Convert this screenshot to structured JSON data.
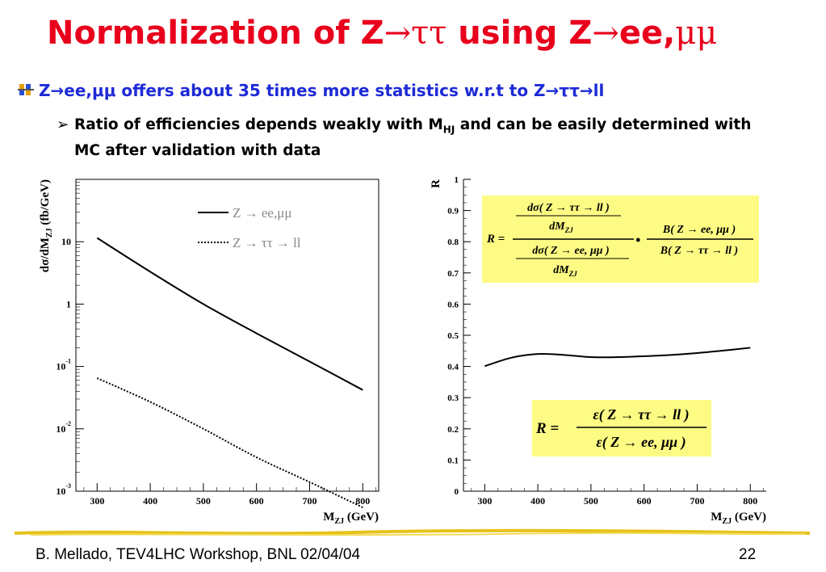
{
  "slide": {
    "title_a": "Normalization of Z",
    "title_sym1": "→ττ",
    "title_b": " using Z",
    "title_sym2": "→",
    "title_c": "ee,",
    "title_sym3": "μμ",
    "bullet1_a": "Z",
    "bullet1_sym1": "→",
    "bullet1_b": "ee,",
    "bullet1_sym2": "μμ",
    "bullet1_c": " offers about 35 times more statistics w.r.t to Z",
    "bullet1_sym3": "→ττ→",
    "bullet1_d": "ll",
    "bullet2_a": "Ratio of efficiencies depends weakly with M",
    "bullet2_sub": "HJ",
    "bullet2_b": " and can be easily determined with MC after validation with data",
    "footer_left": "B. Mellado, TEV4LHC Workshop, BNL 02/04/04",
    "page_number": "22"
  },
  "colors": {
    "title": "#e8001c",
    "bullet": "#1e2bd6",
    "formula_bg": "#fdfb84"
  },
  "formula_top": {
    "lhs": "R =",
    "num_num": "dσ( Z → ττ → ll )",
    "num_den": "dM",
    "num_den_sub": "ZJ",
    "den_num": "dσ( Z → ee, μμ )",
    "den_den": "dM",
    "den_den_sub": "ZJ",
    "dot": "•",
    "b_num": "B( Z → ee, μμ )",
    "b_den": "B( Z → ττ → ll )"
  },
  "formula_bottom": {
    "lhs": "R =",
    "num": "ε( Z → ττ → ll )",
    "den": "ε( Z → ee, μμ )"
  },
  "chart_data": [
    {
      "type": "line",
      "title": "",
      "xlabel": "M",
      "xlabel_sub": "ZJ",
      "xlabel_unit": " (GeV)",
      "ylabel": "dσ/dM",
      "ylabel_sub": "ZJ",
      "ylabel_unit": " (fb/GeV)",
      "x_ticks": [
        "300",
        "400",
        "500",
        "600",
        "700",
        "800"
      ],
      "y_scale": "log",
      "y_ticks": [
        {
          "value": 0.001,
          "base": "10",
          "exp": "-3"
        },
        {
          "value": 0.01,
          "base": "10",
          "exp": "-2"
        },
        {
          "value": 0.1,
          "base": "10",
          "exp": "-1"
        },
        {
          "value": 1,
          "base": "1",
          "exp": ""
        },
        {
          "value": 10,
          "base": "10",
          "exp": ""
        }
      ],
      "xlim": [
        260,
        830
      ],
      "ylim": [
        0.001,
        100
      ],
      "legend_position": "top-right",
      "series": [
        {
          "name": "Z → ee,μμ",
          "style": "solid",
          "x": [
            300,
            400,
            500,
            600,
            700,
            800
          ],
          "values": [
            11.5,
            3.3,
            1.0,
            0.34,
            0.12,
            0.042
          ]
        },
        {
          "name": "Z → ττ → ll",
          "style": "dotted",
          "x": [
            300,
            400,
            500,
            600,
            700,
            800
          ],
          "values": [
            0.065,
            0.027,
            0.01,
            0.0035,
            0.0014,
            0.00055
          ]
        }
      ]
    },
    {
      "type": "line",
      "title": "",
      "xlabel": "M",
      "xlabel_sub": "ZJ",
      "xlabel_unit": " (GeV)",
      "ylabel": "R",
      "x_ticks": [
        "300",
        "400",
        "500",
        "600",
        "700",
        "800"
      ],
      "y_ticks": [
        "0",
        "0.1",
        "0.2",
        "0.3",
        "0.4",
        "0.5",
        "0.6",
        "0.7",
        "0.8",
        "0.9",
        "1"
      ],
      "xlim": [
        260,
        830
      ],
      "ylim": [
        0,
        1
      ],
      "series": [
        {
          "name": "",
          "style": "solid",
          "x": [
            300,
            350,
            400,
            450,
            500,
            550,
            600,
            650,
            700,
            750,
            800
          ],
          "values": [
            0.401,
            0.428,
            0.44,
            0.437,
            0.43,
            0.43,
            0.433,
            0.437,
            0.443,
            0.451,
            0.46
          ]
        }
      ]
    }
  ]
}
